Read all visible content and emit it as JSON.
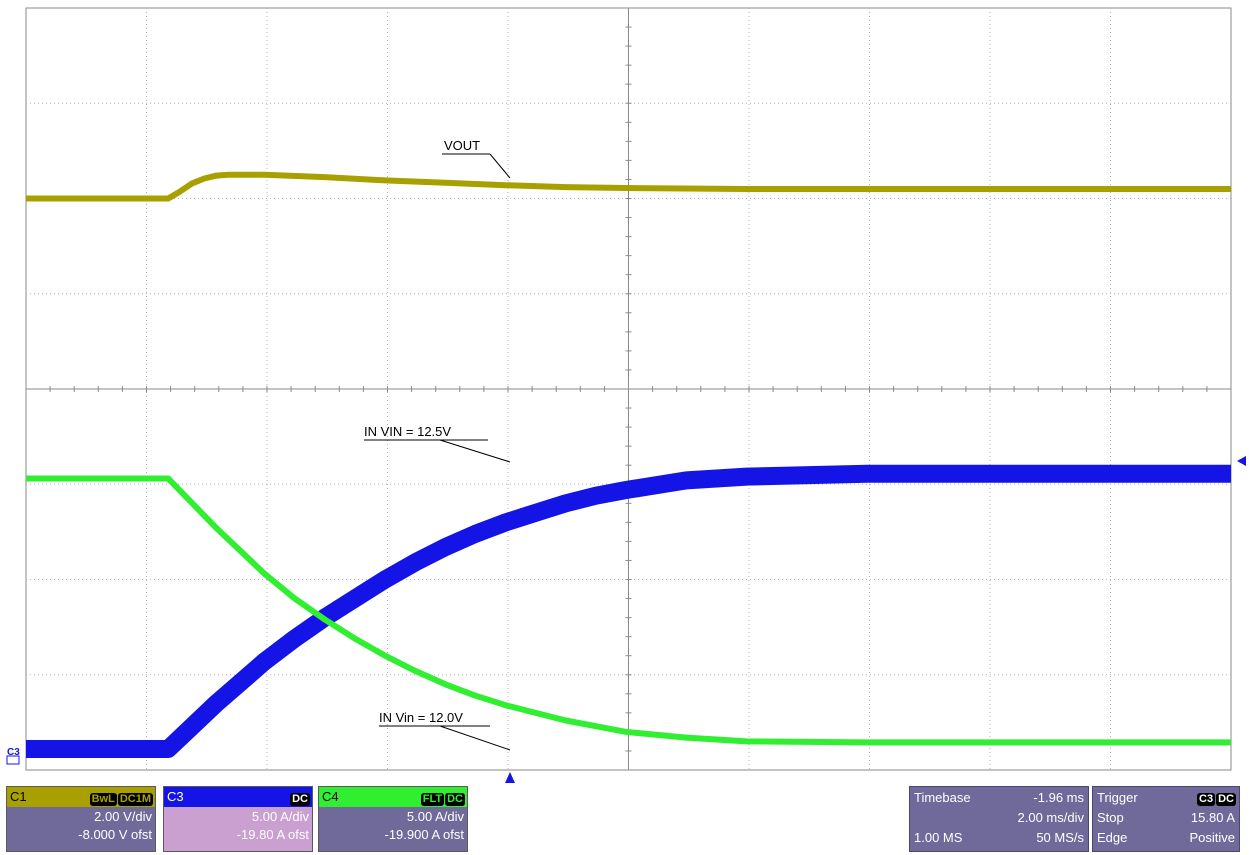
{
  "chart_data": {
    "type": "line",
    "title": "",
    "xlabel": "",
    "ylabel": "",
    "grid": true,
    "x_divisions": 10,
    "y_divisions": 8,
    "x_unit": "ms",
    "x_range": [
      -11.96,
      8.04
    ],
    "series": [
      {
        "channel": "C1",
        "name": "VOUT",
        "color": "#a8a000",
        "unit": "V",
        "x": [
          -11.96,
          -9.6,
          -9.4,
          -9.2,
          -9.0,
          -8.8,
          -8.6,
          -8.0,
          -7.0,
          -6.0,
          -5.0,
          -4.0,
          -3.0,
          -2.0,
          0.0,
          2.0,
          4.0,
          6.0,
          8.04
        ],
        "y": [
          12.0,
          12.0,
          12.15,
          12.32,
          12.42,
          12.48,
          12.5,
          12.5,
          12.45,
          12.38,
          12.33,
          12.28,
          12.24,
          12.22,
          12.2,
          12.2,
          12.2,
          12.2,
          12.2
        ]
      },
      {
        "channel": "C3",
        "name": "IN VIN = 12.5V",
        "color": "#1414e6",
        "unit": "A",
        "x": [
          -11.96,
          -9.6,
          -9.2,
          -8.8,
          -8.4,
          -8.0,
          -7.5,
          -7.0,
          -6.5,
          -6.0,
          -5.5,
          -5.0,
          -4.5,
          -4.0,
          -3.5,
          -3.0,
          -2.5,
          -2.0,
          -1.0,
          0.0,
          2.0,
          4.0,
          6.0,
          8.04
        ],
        "y": [
          1.0,
          1.0,
          2.2,
          3.4,
          4.5,
          5.6,
          6.8,
          7.9,
          8.9,
          9.9,
          10.8,
          11.6,
          12.3,
          12.9,
          13.4,
          13.9,
          14.3,
          14.6,
          15.1,
          15.3,
          15.45,
          15.45,
          15.45,
          15.45
        ]
      },
      {
        "channel": "C4",
        "name": "IN Vin = 12.0V",
        "color": "#30ee30",
        "unit": "A",
        "x": [
          -11.96,
          -9.6,
          -9.2,
          -8.8,
          -8.4,
          -8.0,
          -7.5,
          -7.0,
          -6.5,
          -6.0,
          -5.5,
          -5.0,
          -4.5,
          -4.0,
          -3.5,
          -3.0,
          -2.5,
          -2.0,
          -1.0,
          0.0,
          2.0,
          4.0,
          6.0,
          8.04
        ],
        "y": [
          15.2,
          15.2,
          13.9,
          12.6,
          11.4,
          10.2,
          8.9,
          7.8,
          6.8,
          5.9,
          5.1,
          4.4,
          3.8,
          3.3,
          2.9,
          2.5,
          2.2,
          1.9,
          1.6,
          1.4,
          1.35,
          1.35,
          1.35,
          1.35
        ]
      }
    ],
    "annotations": [
      {
        "text": "VOUT",
        "series": "C1"
      },
      {
        "text": "IN VIN = 12.5V",
        "series": "C3"
      },
      {
        "text": "IN Vin = 12.0V",
        "series": "C4"
      }
    ],
    "upper_ylim": [
      8.0,
      16.0
    ],
    "lower_ylim": [
      -0.1,
      19.9
    ]
  },
  "ground_marker": "C3",
  "channels": [
    {
      "id": "C1",
      "badges": [
        "BwL",
        "DC1M"
      ],
      "scale": "2.00 V/div",
      "offset": "-8.000 V ofst",
      "header_bg": "#a8a000",
      "body_bg": "#706a9a",
      "badge_bg": "#000000",
      "badge_fg": "#a8a000"
    },
    {
      "id": "C3",
      "badges": [
        "DC"
      ],
      "scale": "5.00 A/div",
      "offset": "-19.80 A ofst",
      "header_bg": "#1414e6",
      "body_bg": "#c9a0d0",
      "badge_bg": "#000000",
      "badge_fg": "#ffffff"
    },
    {
      "id": "C4",
      "badges": [
        "FLT",
        "DC"
      ],
      "scale": "5.00 A/div",
      "offset": "-19.900 A ofst",
      "header_bg": "#30ee30",
      "body_bg": "#706a9a",
      "badge_bg": "#000000",
      "badge_fg": "#30ee30"
    }
  ],
  "timebase": {
    "label": "Timebase",
    "delay": "-1.96 ms",
    "scale": "2.00 ms/div",
    "points": "1.00 MS",
    "rate": "50 MS/s"
  },
  "trigger": {
    "label": "Trigger",
    "badges": [
      "C3",
      "DC"
    ],
    "mode": "Stop",
    "level": "15.80 A",
    "type": "Edge",
    "slope": "Positive"
  }
}
